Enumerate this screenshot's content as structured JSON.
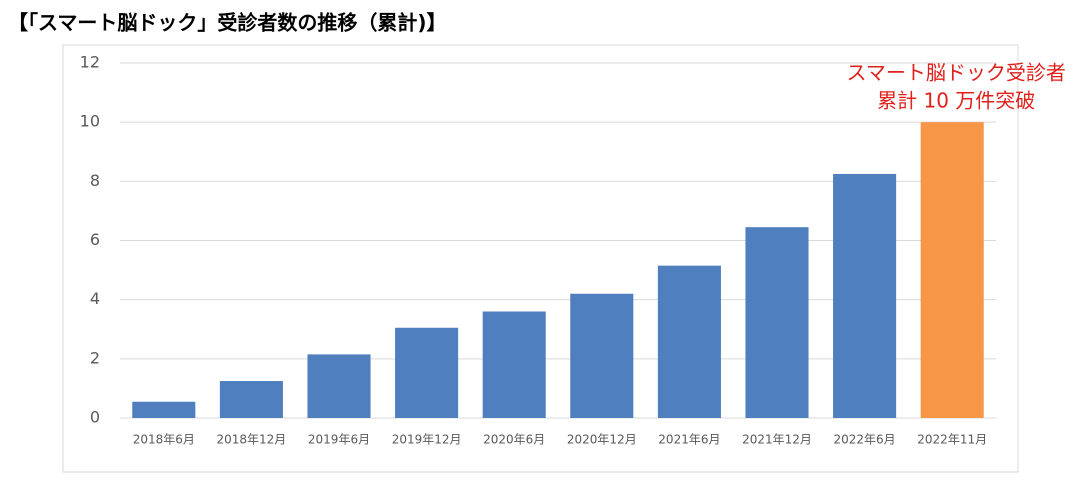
{
  "chart_data": {
    "type": "bar",
    "title": "【「スマート脳ドック」受診者数の推移（累計)】",
    "categories": [
      "2018年6月",
      "2018年12月",
      "2019年6月",
      "2019年12月",
      "2020年6月",
      "2020年12月",
      "2021年6月",
      "2021年12月",
      "2022年6月",
      "2022年11月"
    ],
    "values": [
      0.55,
      1.25,
      2.15,
      3.05,
      3.6,
      4.2,
      5.15,
      6.45,
      8.25,
      10
    ],
    "colors": [
      "#4f7fbf",
      "#4f7fbf",
      "#4f7fbf",
      "#4f7fbf",
      "#4f7fbf",
      "#4f7fbf",
      "#4f7fbf",
      "#4f7fbf",
      "#4f7fbf",
      "#f79646"
    ],
    "annotation": [
      "スマート脳ドック受診者",
      "累計 10 万件突破"
    ],
    "annotation_color": "#e0201b",
    "ylim": [
      0,
      12
    ],
    "yticks": [
      0,
      2,
      4,
      6,
      8,
      10,
      12
    ],
    "grid": true
  }
}
